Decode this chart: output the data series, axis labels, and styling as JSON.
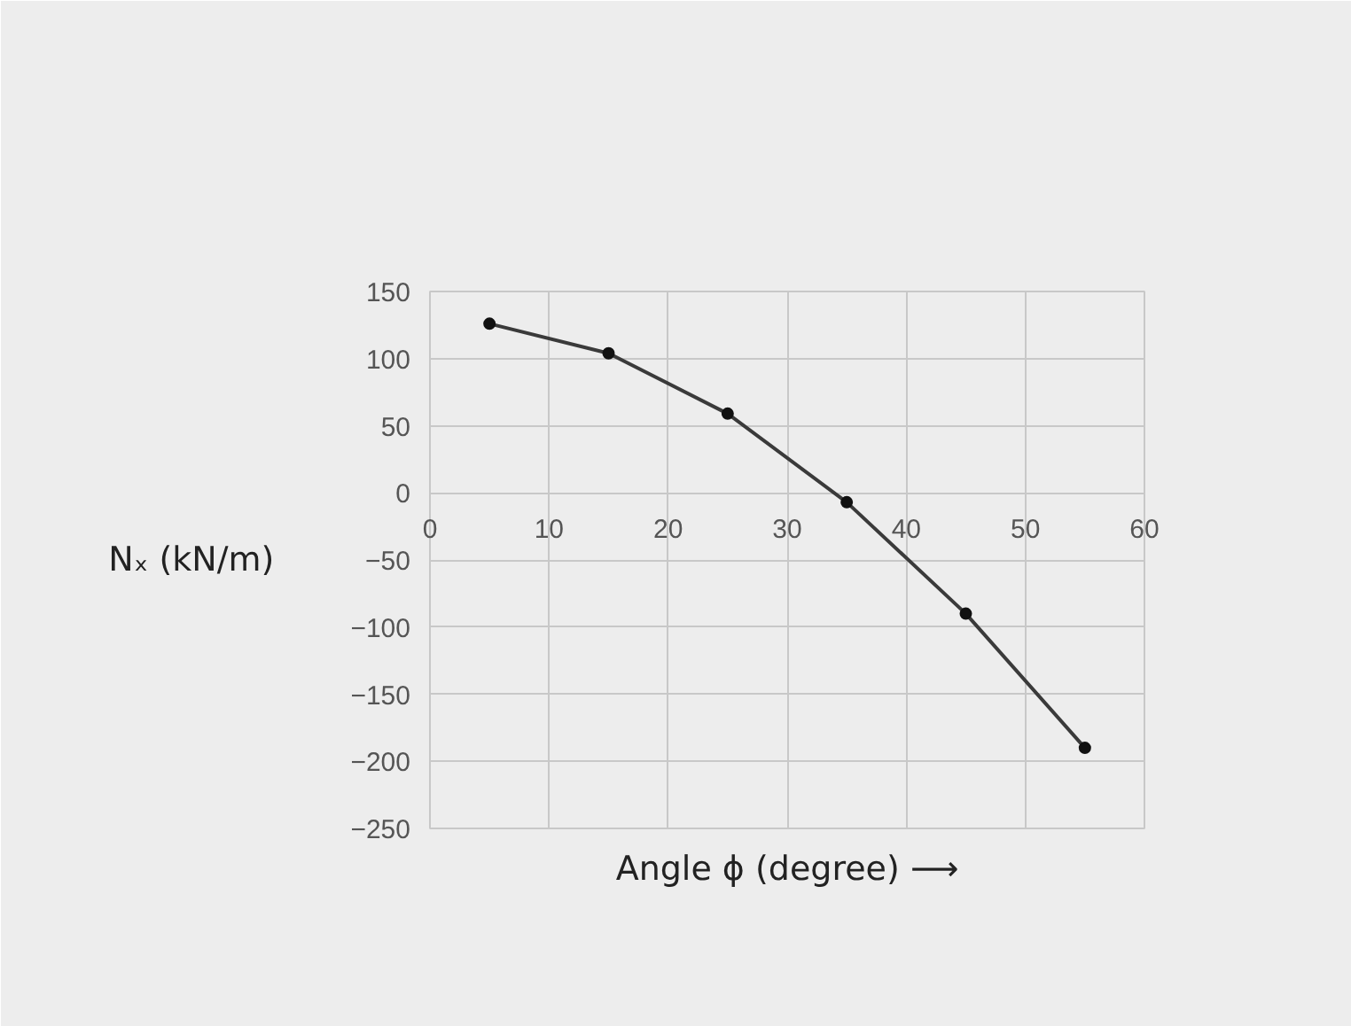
{
  "chart_data": {
    "type": "line",
    "xlabel": "Angle ϕ (degree) ⟶",
    "ylabel": "Nₓ (kN/m)",
    "x": [
      5,
      15,
      25,
      35,
      45,
      55
    ],
    "series": [
      {
        "color": "#3a3a3a",
        "values": [
          126,
          104,
          59,
          -7,
          -90,
          -190
        ]
      }
    ],
    "xlim": [
      0,
      60
    ],
    "xticks": [
      0,
      10,
      20,
      30,
      40,
      50,
      60
    ],
    "ylim": [
      -250,
      150
    ],
    "yticks": [
      -250,
      -200,
      -150,
      -100,
      -50,
      0,
      50,
      100,
      150
    ],
    "grid": true,
    "marker": "circle",
    "line_style": "solid"
  }
}
